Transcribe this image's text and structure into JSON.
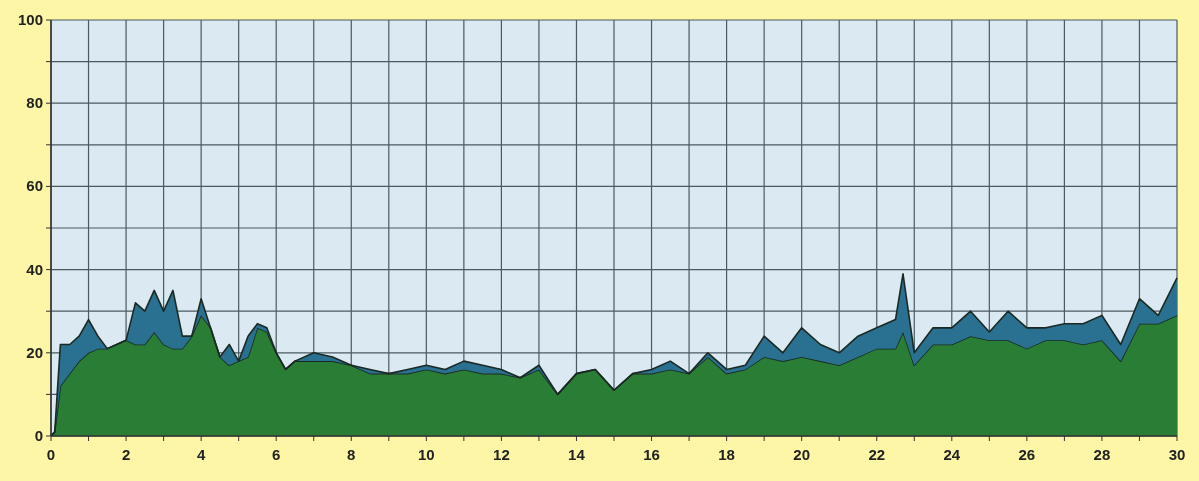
{
  "chart_data": {
    "type": "area",
    "stacked": true,
    "x": [
      0,
      0.1,
      0.25,
      0.5,
      0.75,
      1,
      1.25,
      1.5,
      2,
      2.25,
      2.5,
      2.75,
      3,
      3.25,
      3.5,
      3.75,
      4,
      4.25,
      4.5,
      4.75,
      5,
      5.25,
      5.5,
      5.75,
      6,
      6.25,
      6.5,
      7,
      7.5,
      8,
      8.5,
      9,
      9.5,
      10,
      10.5,
      11,
      11.5,
      12,
      12.5,
      13,
      13.5,
      14,
      14.5,
      15,
      15.5,
      16,
      16.5,
      17,
      17.5,
      18,
      18.5,
      19,
      19.5,
      20,
      20.5,
      21,
      21.5,
      22,
      22.5,
      22.7,
      23,
      23.5,
      24,
      24.5,
      25,
      25.5,
      26,
      26.5,
      27,
      27.5,
      28,
      28.5,
      29,
      29.5,
      30
    ],
    "series": [
      {
        "color": "#2a7d34",
        "values": [
          0,
          1,
          12,
          15,
          18,
          20,
          21,
          21,
          23,
          22,
          22,
          25,
          22,
          21,
          21,
          24,
          29,
          26,
          19,
          17,
          18,
          19,
          26,
          25,
          20,
          16,
          18,
          18,
          18,
          17,
          15,
          15,
          15,
          16,
          15,
          16,
          15,
          15,
          14,
          16,
          10,
          15,
          16,
          11,
          15,
          15,
          16,
          15,
          19,
          15,
          16,
          19,
          18,
          19,
          18,
          17,
          19,
          21,
          21,
          25,
          17,
          22,
          22,
          24,
          23,
          23,
          21,
          23,
          23,
          22,
          23,
          18,
          27,
          27,
          29
        ]
      },
      {
        "color": "#2a7090",
        "values": [
          0,
          0,
          10,
          7,
          6,
          8,
          3,
          0,
          0,
          10,
          8,
          10,
          8,
          14,
          3,
          0,
          4,
          0,
          0,
          5,
          0,
          5,
          1,
          1,
          0,
          0,
          0,
          2,
          1,
          0,
          1,
          0,
          1,
          1,
          1,
          2,
          2,
          1,
          0,
          1,
          0,
          0,
          0,
          0,
          0,
          1,
          2,
          0,
          1,
          1,
          1,
          5,
          2,
          7,
          4,
          3,
          5,
          5,
          7,
          14,
          3,
          4,
          4,
          6,
          2,
          7,
          5,
          3,
          4,
          5,
          6,
          4,
          6,
          2,
          9
        ]
      }
    ],
    "xlim": [
      0,
      30
    ],
    "ylim": [
      0,
      100
    ],
    "xticks": [
      0,
      {
        "value": 1,
        "label": null
      },
      2,
      {
        "value": 3,
        "label": null
      },
      4,
      {
        "value": 5,
        "label": null
      },
      6,
      {
        "value": 7,
        "label": null
      },
      8,
      {
        "value": 9,
        "label": null
      },
      10,
      {
        "value": 11,
        "label": null
      },
      12,
      {
        "value": 13,
        "label": null
      },
      14,
      {
        "value": 15,
        "label": null
      },
      16,
      {
        "value": 17,
        "label": null
      },
      18,
      {
        "value": 19,
        "label": null
      },
      20,
      {
        "value": 21,
        "label": null
      },
      22,
      {
        "value": 23,
        "label": null
      },
      24,
      {
        "value": 25,
        "label": null
      },
      26,
      {
        "value": 27,
        "label": null
      },
      28,
      {
        "value": 29,
        "label": null
      },
      30
    ],
    "yticks": [
      0,
      {
        "value": 10,
        "label": null
      },
      20,
      {
        "value": 30,
        "label": null
      },
      40,
      {
        "value": 50,
        "label": null
      },
      60,
      {
        "value": 70,
        "label": null
      },
      80,
      {
        "value": 90,
        "label": null
      },
      100
    ],
    "grid": true
  }
}
